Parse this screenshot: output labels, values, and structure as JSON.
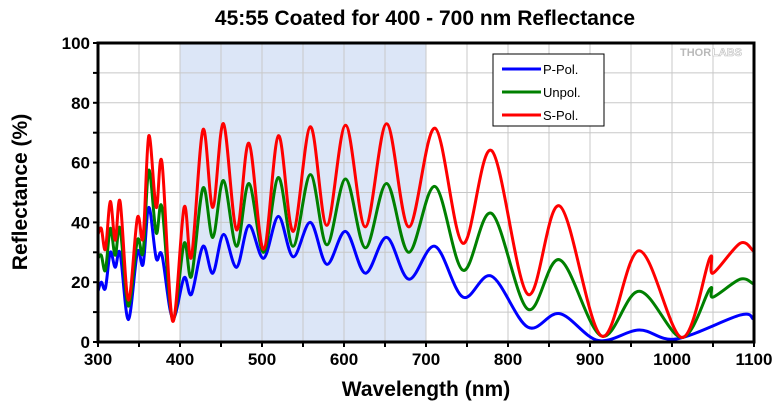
{
  "chart_data": {
    "type": "line",
    "title": "45:55 Coated for 400 - 700 nm Reflectance",
    "xlabel": "Wavelength (nm)",
    "ylabel": "Reflectance (%)",
    "xlim": [
      300,
      1100
    ],
    "ylim": [
      0,
      100
    ],
    "x_ticks": [
      300,
      400,
      500,
      600,
      700,
      800,
      900,
      1000,
      1100
    ],
    "x_tick_labels": [
      "300",
      "400",
      "500",
      "600",
      "700",
      "800",
      "900",
      "1000",
      "1100"
    ],
    "y_ticks": [
      0,
      20,
      40,
      60,
      80,
      100
    ],
    "y_tick_labels": [
      "0",
      "20",
      "40",
      "60",
      "80",
      "100"
    ],
    "x_minor_step": 50,
    "y_minor_step": 10,
    "grid": true,
    "highlight_band": {
      "from": 400,
      "to": 700,
      "color": "#dce6f7"
    },
    "legend_position": "top-right",
    "logo_text": "THORLABS",
    "series": [
      {
        "name": "P-Pol.",
        "color": "#0000ff",
        "x": [
          300,
          304,
          309,
          315,
          321,
          327,
          337,
          348,
          355,
          362,
          371,
          378,
          391,
          405,
          414,
          428,
          440,
          453,
          469,
          484,
          502,
          520,
          538,
          559,
          579,
          602,
          626,
          652,
          679,
          711,
          745,
          780,
          824,
          863,
          910,
          960,
          1005,
          1083,
          1099
        ],
        "y": [
          17,
          20,
          18,
          30,
          25,
          29.7,
          7.5,
          30,
          26,
          45,
          28,
          29,
          8,
          21.5,
          16,
          32,
          23,
          36,
          25,
          39,
          28,
          42,
          28.5,
          40,
          26,
          37,
          23,
          35,
          21,
          32,
          15,
          22,
          5,
          9.5,
          0.5,
          4,
          1,
          9,
          7.7
        ]
      },
      {
        "name": "Unpol.",
        "color": "#008000",
        "x": [
          300,
          304,
          309,
          315,
          321,
          327,
          337,
          348,
          355,
          362,
          371,
          378,
          391,
          405,
          414,
          428,
          440,
          453,
          469,
          484,
          502,
          520,
          538,
          559,
          579,
          602,
          626,
          652,
          679,
          711,
          745,
          780,
          824,
          863,
          914,
          960,
          1012,
          1046,
          1050,
          1083,
          1099
        ],
        "y": [
          28,
          29,
          24,
          38,
          29,
          38,
          12,
          34,
          30,
          57.5,
          36.5,
          45,
          7.5,
          33,
          22,
          51.5,
          35,
          54,
          32,
          53,
          30,
          55,
          32,
          56,
          32.5,
          54.5,
          31.5,
          53,
          30,
          52,
          24,
          43,
          11,
          27.5,
          2,
          17,
          1.5,
          17.7,
          15,
          21,
          19.5
        ]
      },
      {
        "name": "S-Pol.",
        "color": "#ff0000",
        "x": [
          300,
          304,
          309,
          315,
          321,
          327,
          337,
          348,
          355,
          362,
          371,
          378,
          391,
          405,
          414,
          428,
          440,
          453,
          469,
          484,
          502,
          520,
          538,
          559,
          579,
          602,
          626,
          652,
          679,
          711,
          745,
          780,
          824,
          863,
          914,
          960,
          1012,
          1046,
          1050,
          1083,
          1099
        ],
        "y": [
          36,
          38,
          31,
          47,
          34,
          47,
          14,
          41.5,
          35,
          69,
          45,
          60,
          7,
          45,
          28.5,
          71,
          45,
          73,
          37.5,
          66.5,
          31,
          69,
          37,
          72,
          39,
          72.5,
          38.5,
          73,
          38.5,
          71.5,
          33,
          64,
          16,
          45.5,
          2,
          30.5,
          1.5,
          28,
          23,
          33,
          30.5
        ]
      }
    ]
  }
}
